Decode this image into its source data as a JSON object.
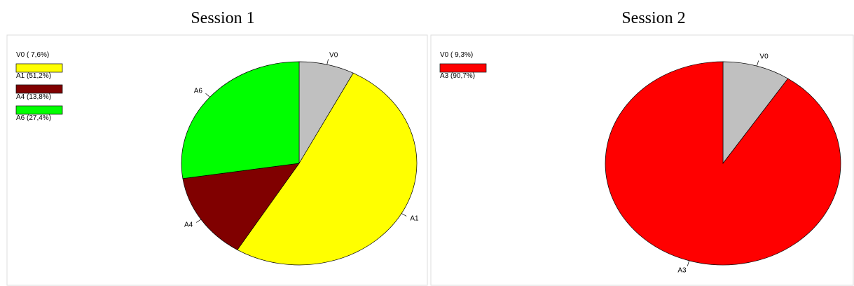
{
  "chart_data": [
    {
      "type": "pie",
      "title": "Session 1",
      "categories": [
        "V0",
        "A1",
        "A4",
        "A6"
      ],
      "values": [
        7.6,
        51.2,
        13.8,
        27.4
      ],
      "value_labels": [
        "V0 ( 7,6%)",
        "A1 (51,2%)",
        "A4 (13,8%)",
        "A6 (27,4%)"
      ],
      "colors": [
        "#c0c0c0",
        "#ffff00",
        "#800000",
        "#00ff00"
      ]
    },
    {
      "type": "pie",
      "title": "Session 2",
      "categories": [
        "V0",
        "A3"
      ],
      "values": [
        9.3,
        90.7
      ],
      "value_labels": [
        "V0 ( 9,3%)",
        "A3 (90,7%)"
      ],
      "colors": [
        "#c0c0c0",
        "#ff0000"
      ]
    }
  ]
}
